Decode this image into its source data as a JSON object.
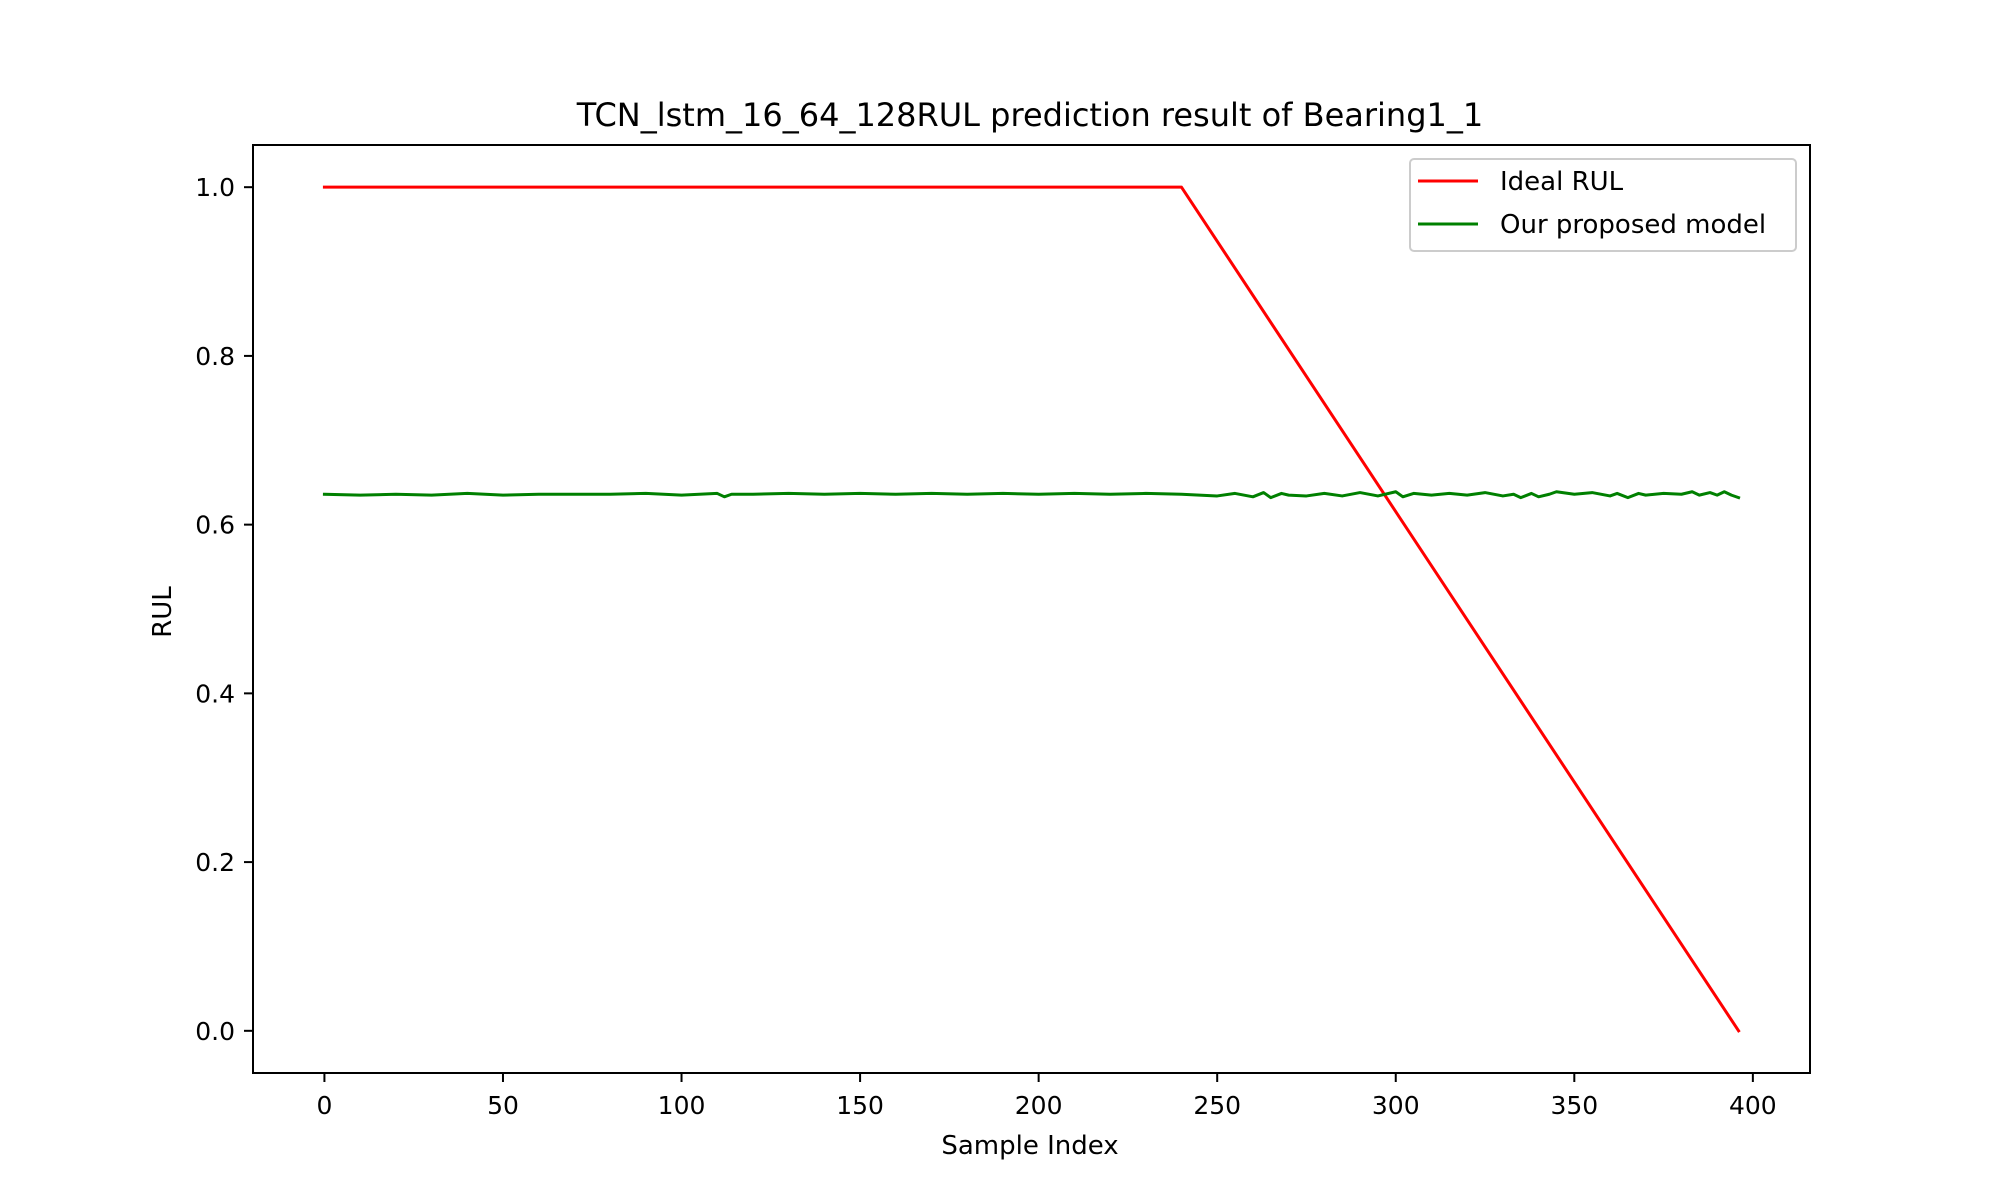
{
  "chart_data": {
    "type": "line",
    "title": "TCN_lstm_16_64_128RUL prediction result of Bearing1_1",
    "xlabel": "Sample Index",
    "ylabel": "RUL",
    "xlim": [
      -20,
      416
    ],
    "ylim": [
      -0.05,
      1.05
    ],
    "xticks": [
      0,
      50,
      100,
      150,
      200,
      250,
      300,
      350,
      400
    ],
    "yticks": [
      0.0,
      0.2,
      0.4,
      0.6,
      0.8,
      1.0
    ],
    "xtick_labels": [
      "0",
      "50",
      "100",
      "150",
      "200",
      "250",
      "300",
      "350",
      "400"
    ],
    "ytick_labels": [
      "0.0",
      "0.2",
      "0.4",
      "0.6",
      "0.8",
      "1.0"
    ],
    "grid": false,
    "legend_position": "upper right",
    "series": [
      {
        "name": "Ideal RUL",
        "color": "#ff0000",
        "x": [
          0,
          240,
          396
        ],
        "y": [
          1.0,
          1.0,
          0.0
        ]
      },
      {
        "name": "Our proposed model",
        "color": "#008000",
        "x": [
          0,
          10,
          20,
          30,
          40,
          50,
          60,
          70,
          80,
          90,
          100,
          110,
          112,
          114,
          120,
          130,
          140,
          150,
          160,
          170,
          180,
          190,
          200,
          210,
          220,
          230,
          240,
          250,
          255,
          260,
          263,
          265,
          268,
          270,
          275,
          280,
          285,
          290,
          295,
          300,
          302,
          305,
          310,
          315,
          320,
          325,
          330,
          333,
          335,
          338,
          340,
          343,
          345,
          350,
          355,
          360,
          362,
          365,
          368,
          370,
          375,
          380,
          383,
          385,
          388,
          390,
          392,
          394,
          396
        ],
        "y": [
          0.636,
          0.635,
          0.636,
          0.635,
          0.637,
          0.635,
          0.636,
          0.636,
          0.636,
          0.637,
          0.635,
          0.637,
          0.633,
          0.636,
          0.636,
          0.637,
          0.636,
          0.637,
          0.636,
          0.637,
          0.636,
          0.637,
          0.636,
          0.637,
          0.636,
          0.637,
          0.636,
          0.634,
          0.637,
          0.633,
          0.638,
          0.632,
          0.637,
          0.635,
          0.634,
          0.637,
          0.634,
          0.638,
          0.634,
          0.639,
          0.633,
          0.637,
          0.635,
          0.637,
          0.635,
          0.638,
          0.634,
          0.636,
          0.632,
          0.637,
          0.633,
          0.636,
          0.639,
          0.636,
          0.638,
          0.634,
          0.637,
          0.632,
          0.637,
          0.635,
          0.637,
          0.636,
          0.639,
          0.635,
          0.638,
          0.635,
          0.639,
          0.635,
          0.632
        ]
      }
    ]
  }
}
